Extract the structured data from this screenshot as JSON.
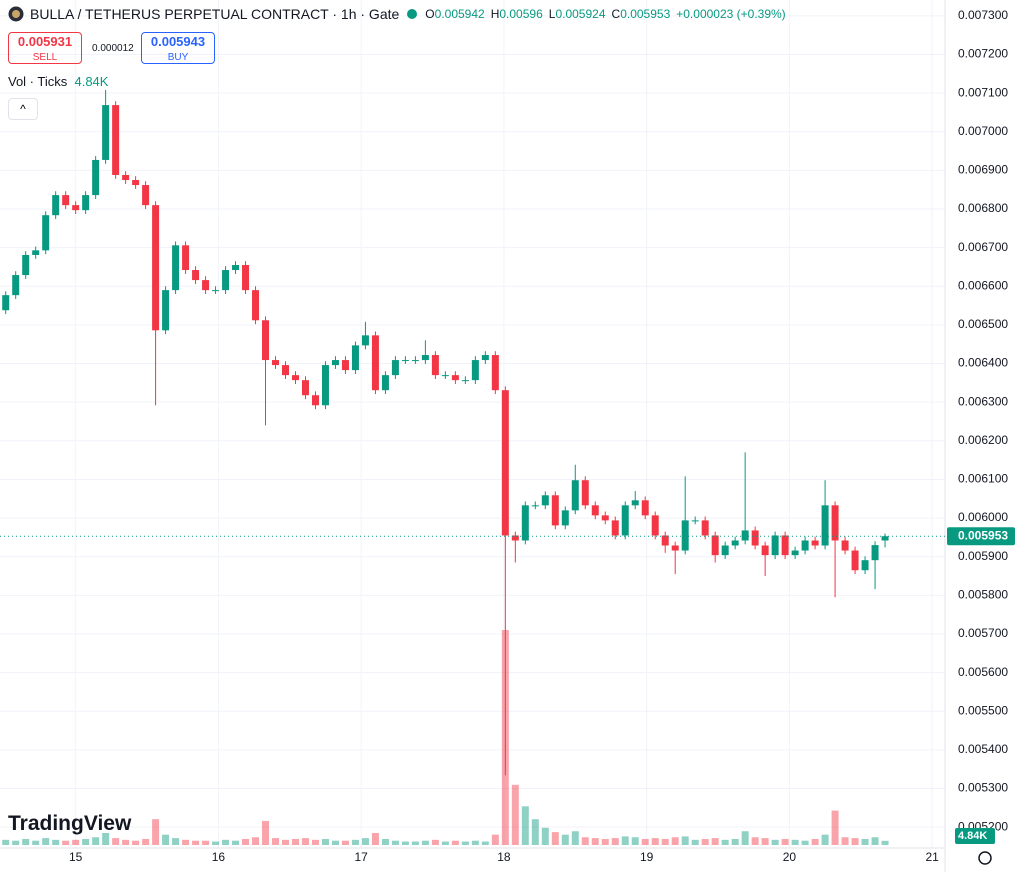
{
  "chart_data": {
    "type": "candlestick",
    "title": "BULLA / TETHERUS PERPETUAL CONTRACT · 1h · Gate",
    "ohlc_labels": [
      "O",
      "H",
      "L",
      "C"
    ],
    "change": "+0.000023 (+0.39%)",
    "sell": {
      "price": 0.005931,
      "label": "SELL"
    },
    "spread": 1.2e-05,
    "buy": {
      "price": 0.005943,
      "label": "BUY"
    },
    "volume_title": "Vol · Ticks",
    "volume_label": "4.84K",
    "watermark": "TradingView",
    "up_color": "#089981",
    "down_color": "#f23645",
    "grid": true,
    "xlim": [
      14.47,
      21.09
    ],
    "xticks": [
      15,
      16,
      17,
      18,
      19,
      20,
      21
    ],
    "ylim": [
      0.005146,
      0.007341
    ],
    "yticks": [
      {
        "value": 0.0052,
        "label": "0.005200"
      },
      {
        "value": 0.0053,
        "label": "0.005300"
      },
      {
        "value": 0.0054,
        "label": "0.005400"
      },
      {
        "value": 0.0055,
        "label": "0.005500"
      },
      {
        "value": 0.0056,
        "label": "0.005600"
      },
      {
        "value": 0.0057,
        "label": "0.005700"
      },
      {
        "value": 0.0058,
        "label": "0.005800"
      },
      {
        "value": 0.0059,
        "label": "0.005900"
      },
      {
        "value": 0.006,
        "label": "0.006000"
      },
      {
        "value": 0.0061,
        "label": "0.006100"
      },
      {
        "value": 0.0062,
        "label": "0.006200"
      },
      {
        "value": 0.0063,
        "label": "0.006300"
      },
      {
        "value": 0.0064,
        "label": "0.006400"
      },
      {
        "value": 0.0065,
        "label": "0.006500"
      },
      {
        "value": 0.0066,
        "label": "0.006600"
      },
      {
        "value": 0.0067,
        "label": "0.006700"
      },
      {
        "value": 0.0068,
        "label": "0.006800"
      },
      {
        "value": 0.0069,
        "label": "0.006900"
      },
      {
        "value": 0.007,
        "label": "0.007000"
      },
      {
        "value": 0.0071,
        "label": "0.007100"
      },
      {
        "value": 0.0072,
        "label": "0.007200"
      },
      {
        "value": 0.0073,
        "label": "0.007300"
      }
    ],
    "x": [
      14.51,
      14.58,
      14.65,
      14.72,
      14.79,
      14.86,
      14.93,
      15,
      15.07,
      15.14,
      15.21,
      15.28,
      15.35,
      15.42,
      15.49,
      15.56,
      15.63,
      15.7,
      15.77,
      15.84,
      15.91,
      15.98,
      16.05,
      16.12,
      16.19,
      16.26,
      16.33,
      16.4,
      16.47,
      16.54,
      16.61,
      16.68,
      16.75,
      16.82,
      16.89,
      16.96,
      17.03,
      17.1,
      17.17,
      17.24,
      17.31,
      17.38,
      17.45,
      17.52,
      17.59,
      17.66,
      17.73,
      17.8,
      17.87,
      17.94,
      18.01,
      18.08,
      18.15,
      18.22,
      18.29,
      18.36,
      18.43,
      18.5,
      18.57,
      18.64,
      18.71,
      18.78,
      18.85,
      18.92,
      18.99,
      19.06,
      19.13,
      19.2,
      19.27,
      19.34,
      19.41,
      19.48,
      19.55,
      19.62,
      19.69,
      19.76,
      19.83,
      19.9,
      19.97,
      20.04,
      20.11,
      20.18,
      20.25,
      20.32,
      20.39,
      20.46,
      20.53,
      20.6,
      20.67
    ],
    "open": [
      0.006538,
      0.006577,
      0.006629,
      0.006681,
      0.006693,
      0.006784,
      0.006836,
      0.00681,
      0.006797,
      0.006836,
      0.006927,
      0.007069,
      0.006888,
      0.006875,
      0.006862,
      0.00681,
      0.006486,
      0.00659,
      0.006706,
      0.006642,
      0.006616,
      0.00659,
      0.00659,
      0.006642,
      0.006655,
      0.00659,
      0.006512,
      0.006409,
      0.006396,
      0.00637,
      0.006357,
      0.006318,
      0.006292,
      0.006396,
      0.006409,
      0.006383,
      0.006447,
      0.006473,
      0.006331,
      0.00637,
      0.006409,
      0.006409,
      0.006409,
      0.006422,
      0.00637,
      0.00637,
      0.006357,
      0.006357,
      0.006409,
      0.006422,
      0.006331,
      0.005955,
      0.005942,
      0.006033,
      0.006033,
      0.006059,
      0.005981,
      0.00602,
      0.006098,
      0.006033,
      0.006007,
      0.005994,
      0.005955,
      0.006033,
      0.006046,
      0.006007,
      0.005955,
      0.005929,
      0.005916,
      0.005994,
      0.005994,
      0.005955,
      0.005904,
      0.005929,
      0.005942,
      0.005968,
      0.005929,
      0.005904,
      0.005955,
      0.005904,
      0.005916,
      0.005942,
      0.005929,
      0.006033,
      0.005942,
      0.005916,
      0.005865,
      0.005891,
      0.005942
    ],
    "high": [
      0.006587,
      0.006639,
      0.006691,
      0.006703,
      0.006794,
      0.006846,
      0.006846,
      0.00682,
      0.006846,
      0.006937,
      0.007108,
      0.007079,
      0.006898,
      0.006885,
      0.006872,
      0.00682,
      0.0066,
      0.006716,
      0.006716,
      0.006652,
      0.006626,
      0.0066,
      0.006652,
      0.006665,
      0.006665,
      0.0066,
      0.006522,
      0.006419,
      0.006406,
      0.00638,
      0.006367,
      0.006328,
      0.006406,
      0.006419,
      0.006419,
      0.006457,
      0.006508,
      0.006483,
      0.00638,
      0.006419,
      0.006419,
      0.006419,
      0.00646,
      0.006432,
      0.00638,
      0.00638,
      0.006367,
      0.006419,
      0.006432,
      0.006432,
      0.006341,
      0.005965,
      0.006043,
      0.006043,
      0.006069,
      0.006069,
      0.00603,
      0.006138,
      0.006108,
      0.006043,
      0.006017,
      0.006004,
      0.006043,
      0.00607,
      0.006056,
      0.006017,
      0.005965,
      0.005939,
      0.006108,
      0.006004,
      0.006004,
      0.005965,
      0.005939,
      0.005952,
      0.00617,
      0.005978,
      0.005939,
      0.005965,
      0.005965,
      0.005926,
      0.005952,
      0.005952,
      0.006098,
      0.006043,
      0.005952,
      0.005926,
      0.005901,
      0.00594,
      0.00596
    ],
    "low": [
      0.006528,
      0.006567,
      0.006619,
      0.006671,
      0.006683,
      0.006774,
      0.0068,
      0.006787,
      0.006787,
      0.006826,
      0.006917,
      0.006878,
      0.006865,
      0.006852,
      0.0068,
      0.006292,
      0.006476,
      0.00658,
      0.006632,
      0.006606,
      0.00658,
      0.00658,
      0.00658,
      0.006632,
      0.00658,
      0.006502,
      0.00624,
      0.006386,
      0.00636,
      0.006347,
      0.006308,
      0.006282,
      0.006282,
      0.006386,
      0.006373,
      0.006373,
      0.006437,
      0.006321,
      0.006321,
      0.00636,
      0.006399,
      0.006399,
      0.006399,
      0.00636,
      0.00636,
      0.006347,
      0.006347,
      0.006347,
      0.006399,
      0.006321,
      0.005334,
      0.005885,
      0.005932,
      0.006023,
      0.006023,
      0.005971,
      0.005971,
      0.00601,
      0.006023,
      0.005997,
      0.005984,
      0.005945,
      0.005945,
      0.006023,
      0.005997,
      0.005945,
      0.00591,
      0.005855,
      0.005906,
      0.005984,
      0.005945,
      0.005885,
      0.005894,
      0.005919,
      0.005932,
      0.005919,
      0.00585,
      0.005894,
      0.005894,
      0.005894,
      0.005906,
      0.005919,
      0.005919,
      0.005795,
      0.005906,
      0.005855,
      0.005855,
      0.005816,
      0.005924
    ],
    "close": [
      0.006577,
      0.006629,
      0.006681,
      0.006693,
      0.006784,
      0.006836,
      0.00681,
      0.006797,
      0.006836,
      0.006927,
      0.007069,
      0.006888,
      0.006875,
      0.006862,
      0.00681,
      0.006486,
      0.00659,
      0.006706,
      0.006642,
      0.006616,
      0.00659,
      0.00659,
      0.006642,
      0.006655,
      0.00659,
      0.006512,
      0.006409,
      0.006396,
      0.00637,
      0.006357,
      0.006318,
      0.006292,
      0.006396,
      0.006409,
      0.006383,
      0.006447,
      0.006473,
      0.006331,
      0.00637,
      0.006409,
      0.006409,
      0.006409,
      0.006422,
      0.00637,
      0.00637,
      0.006357,
      0.006357,
      0.006409,
      0.006422,
      0.006331,
      0.005955,
      0.005942,
      0.006033,
      0.006033,
      0.006059,
      0.005981,
      0.00602,
      0.006098,
      0.006033,
      0.006007,
      0.005994,
      0.005955,
      0.006033,
      0.006046,
      0.006007,
      0.005955,
      0.005929,
      0.005916,
      0.005994,
      0.005994,
      0.005955,
      0.005904,
      0.005929,
      0.005942,
      0.005968,
      0.005929,
      0.005904,
      0.005955,
      0.005904,
      0.005916,
      0.005942,
      0.005929,
      0.006033,
      0.005942,
      0.005916,
      0.005865,
      0.005891,
      0.00593,
      0.005953
    ],
    "volume": [
      6000,
      5000,
      7000,
      5000,
      8000,
      6000,
      5000,
      6000,
      7000,
      9000,
      14000,
      8000,
      6000,
      5000,
      7000,
      30000,
      12000,
      8000,
      6000,
      5000,
      5000,
      4000,
      6000,
      5000,
      7000,
      9000,
      28000,
      8000,
      6000,
      7000,
      8000,
      6000,
      7000,
      5000,
      5000,
      6000,
      8000,
      14000,
      7000,
      5000,
      4000,
      4000,
      5000,
      6000,
      4000,
      5000,
      4000,
      5000,
      4000,
      12000,
      250000,
      70000,
      45000,
      30000,
      20000,
      15000,
      12000,
      16000,
      9000,
      8000,
      7000,
      8000,
      10000,
      9000,
      7000,
      8000,
      7000,
      9000,
      10000,
      6000,
      7000,
      8000,
      6000,
      7000,
      16000,
      9000,
      8000,
      6000,
      7000,
      6000,
      5000,
      7000,
      12000,
      40000,
      9000,
      8000,
      7000,
      9000,
      4840
    ]
  }
}
